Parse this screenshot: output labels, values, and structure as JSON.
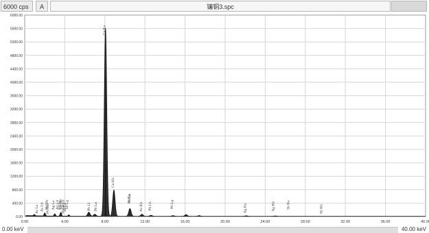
{
  "toolbar": {
    "scale_label": "6000 cps",
    "mode_label": "A",
    "file_title": "镶铜3.spc"
  },
  "footer": {
    "axis_start": "0.00 keV",
    "axis_end": "40.00 keV"
  },
  "colors": {
    "spectrum": "#111111",
    "grid": "#d6d6d6",
    "frame": "#9a9a9a",
    "text": "#333333"
  },
  "chart_data": {
    "type": "line",
    "title": "",
    "xlabel": "",
    "ylabel": "",
    "xlim": [
      0,
      40
    ],
    "ylim": [
      0,
      6000
    ],
    "grid": true,
    "x_ticks": [
      "0.00",
      "4.00",
      "8.00",
      "12.00",
      "16.00",
      "20.00",
      "24.00",
      "28.00",
      "32.00",
      "36.00",
      "40.00"
    ],
    "y_ticks": [
      "0.00",
      "400.00",
      "800.00",
      "1200.00",
      "1600.00",
      "2000.00",
      "2400.00",
      "2800.00",
      "3200.00",
      "3600.00",
      "4000.00",
      "4400.00",
      "4800.00",
      "5200.00",
      "5600.00",
      "6000.00"
    ],
    "peaks": [
      {
        "keV": 0.95,
        "cps": 40
      },
      {
        "keV": 2.0,
        "cps": 90
      },
      {
        "keV": 3.0,
        "cps": 70
      },
      {
        "keV": 3.6,
        "cps": 110
      },
      {
        "keV": 4.4,
        "cps": 40
      },
      {
        "keV": 6.4,
        "cps": 120
      },
      {
        "keV": 7.0,
        "cps": 60
      },
      {
        "keV": 8.05,
        "cps": 4150
      },
      {
        "keV": 8.1,
        "cps": 1550
      },
      {
        "keV": 8.9,
        "cps": 780
      },
      {
        "keV": 10.5,
        "cps": 230
      },
      {
        "keV": 11.7,
        "cps": 60
      },
      {
        "keV": 12.6,
        "cps": 30
      },
      {
        "keV": 14.8,
        "cps": 20
      },
      {
        "keV": 16.1,
        "cps": 50
      },
      {
        "keV": 17.4,
        "cps": 20
      },
      {
        "keV": 22.1,
        "cps": 15
      },
      {
        "keV": 25.0,
        "cps": 10
      }
    ],
    "annotations": [
      {
        "label": "As La",
        "keV": 1.3
      },
      {
        "label": "As Lb",
        "keV": 1.8
      },
      {
        "label": "Pb Ma",
        "keV": 2.3
      },
      {
        "label": "Pb Mb",
        "keV": 2.4
      },
      {
        "label": "Ag La",
        "keV": 2.95
      },
      {
        "label": "Ag Lb",
        "keV": 3.35
      },
      {
        "label": "Ag Lg",
        "keV": 3.6
      },
      {
        "label": "Cu Ka",
        "keV": 3.65
      },
      {
        "label": "Cu Kb",
        "keV": 3.95
      },
      {
        "label": "Sb La",
        "keV": 3.9
      },
      {
        "label": "Sb Lb",
        "keV": 4.1
      },
      {
        "label": "Sb Lg",
        "keV": 4.3
      },
      {
        "label": "Pb Ll",
        "keV": 6.5
      },
      {
        "label": "Pb Ln",
        "keV": 7.2
      },
      {
        "label": "Cu Ka",
        "keV": 8.05
      },
      {
        "label": "Cu Kb",
        "keV": 8.9
      },
      {
        "label": "As Ka",
        "keV": 10.5
      },
      {
        "label": "Pb La",
        "keV": 10.55
      },
      {
        "label": "As Kb",
        "keV": 11.7
      },
      {
        "label": "Pb Lb",
        "keV": 12.6
      },
      {
        "label": "Pb Lg",
        "keV": 14.8
      },
      {
        "label": "Ag Ka",
        "keV": 22.1
      },
      {
        "label": "Ag Kb",
        "keV": 24.9
      },
      {
        "label": "Sb Ka",
        "keV": 26.4
      },
      {
        "label": "Sb Kb",
        "keV": 29.7
      }
    ]
  }
}
